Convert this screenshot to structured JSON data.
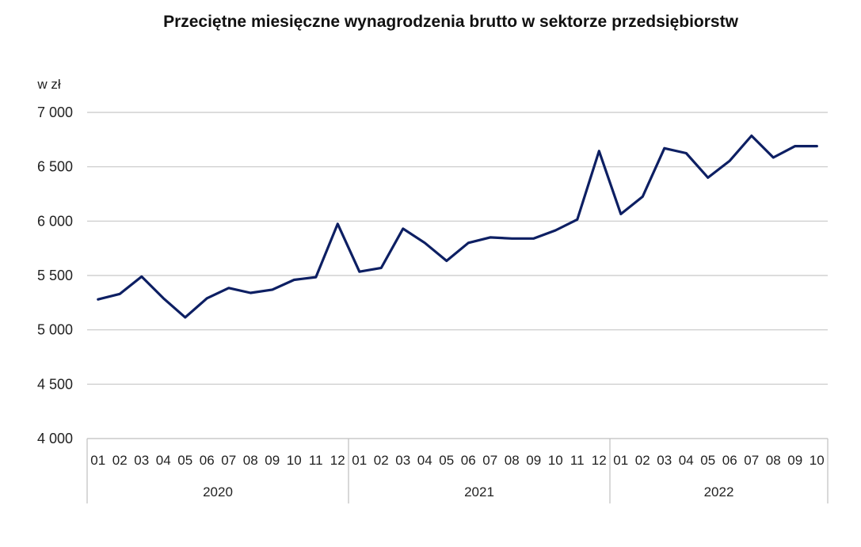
{
  "chart_data": {
    "type": "line",
    "title": "Przeciętne miesięczne wynagrodzenia brutto w sektorze przedsiębiorstw",
    "ylabel": "w zł",
    "xlabel": "",
    "ylim": [
      4000,
      7000
    ],
    "yticks": [
      "4 000",
      "4 500",
      "5 000",
      "5 500",
      "6 000",
      "6 500",
      "7 000"
    ],
    "ytick_values": [
      4000,
      4500,
      5000,
      5500,
      6000,
      6500,
      7000
    ],
    "categories": [
      "01",
      "02",
      "03",
      "04",
      "05",
      "06",
      "07",
      "08",
      "09",
      "10",
      "11",
      "12",
      "01",
      "02",
      "03",
      "04",
      "05",
      "06",
      "07",
      "08",
      "09",
      "10",
      "11",
      "12",
      "01",
      "02",
      "03",
      "04",
      "05",
      "06",
      "07",
      "08",
      "09",
      "10"
    ],
    "groups": [
      {
        "label": "2020",
        "count": 12
      },
      {
        "label": "2021",
        "count": 12
      },
      {
        "label": "2022",
        "count": 10
      }
    ],
    "series": [
      {
        "color": "#0d1f63",
        "values": [
          5280,
          5330,
          5490,
          5290,
          5115,
          5290,
          5385,
          5340,
          5370,
          5460,
          5485,
          5975,
          5535,
          5570,
          5930,
          5800,
          5635,
          5800,
          5850,
          5840,
          5840,
          5915,
          6015,
          6645,
          6065,
          6225,
          6670,
          6625,
          6400,
          6555,
          6785,
          6585,
          6690,
          6690
        ]
      }
    ],
    "grid": true,
    "legend": "none",
    "colors": {
      "line": "#0d1f63",
      "grid": "#c8c8c8",
      "axis": "#bfbfbf"
    }
  }
}
